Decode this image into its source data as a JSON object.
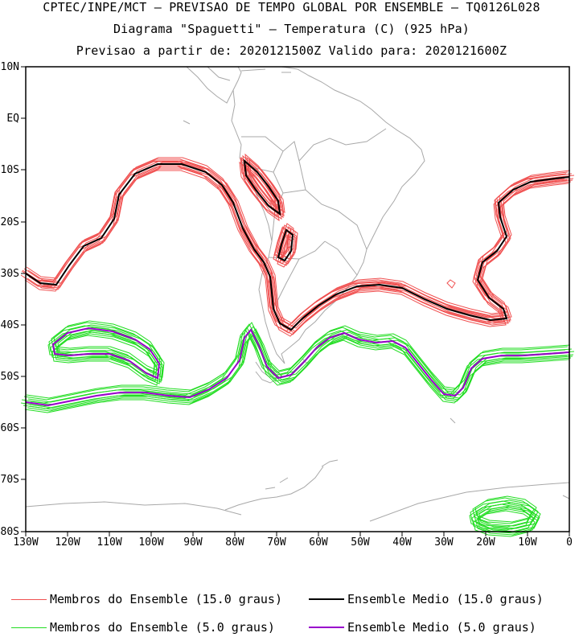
{
  "header": {
    "line1": "CPTEC/INPE/MCT — PREVISAO DE TEMPO GLOBAL POR ENSEMBLE — TQ0126L028",
    "line2": "Diagrama \"Spaguetti\" — Temperatura (C) (925 hPa)",
    "line3": "Previsao a partir de: 2020121500Z  Valido para: 2020121600Z"
  },
  "axes": {
    "lat_labels": [
      "10N",
      "EQ",
      "10S",
      "20S",
      "30S",
      "40S",
      "50S",
      "60S",
      "70S",
      "80S"
    ],
    "lon_labels": [
      "130W",
      "120W",
      "110W",
      "100W",
      "90W",
      "80W",
      "70W",
      "60W",
      "50W",
      "40W",
      "30W",
      "20W",
      "10W",
      "0"
    ]
  },
  "colors": {
    "members_15": "#f05050",
    "mean_15": "#000000",
    "members_5": "#22dd22",
    "mean_5": "#9900cc",
    "coast": "#a8a8a8"
  },
  "legend": {
    "members_15": "Membros do Ensemble (15.0 graus)",
    "mean_15": "Ensemble Medio (15.0 graus)",
    "members_5": "Membros do Ensemble (5.0 graus)",
    "mean_5": "Ensemble Medio (5.0 graus)"
  }
}
